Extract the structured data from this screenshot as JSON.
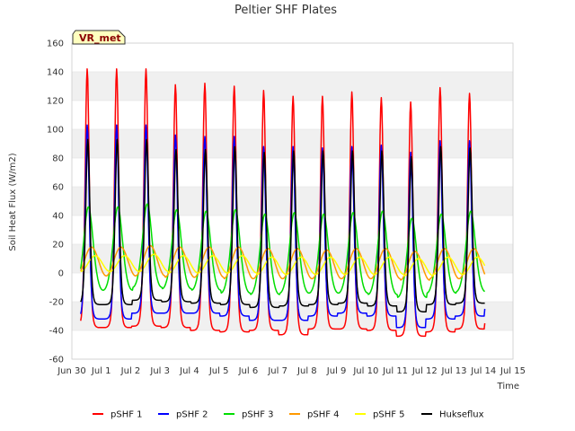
{
  "chart_data": {
    "type": "line",
    "title": "Peltier SHF Plates",
    "xlabel": "Time",
    "ylabel": "Soil Heat Flux (W/m2)",
    "badge": "VR_met",
    "ylim": [
      -60,
      160
    ],
    "yticks": [
      -60,
      -40,
      -20,
      0,
      20,
      40,
      60,
      80,
      100,
      120,
      140,
      160
    ],
    "xlim": [
      "2024-06-30",
      "2024-07-15"
    ],
    "xticks": [
      "Jun 30",
      "Jul 1",
      "Jul 2",
      "Jul 3",
      "Jul 4",
      "Jul 5",
      "Jul 6",
      "Jul 7",
      "Jul 8",
      "Jul 9",
      "Jul 10",
      "Jul 11",
      "Jul 12",
      "Jul 13",
      "Jul 14",
      "Jul 15"
    ],
    "grid": true,
    "legend_position": "bottom",
    "days": [
      "Jul 1",
      "Jul 2",
      "Jul 3",
      "Jul 4",
      "Jul 5",
      "Jul 6",
      "Jul 7",
      "Jul 8",
      "Jul 9",
      "Jul 10",
      "Jul 11",
      "Jul 12",
      "Jul 13",
      "Jul 14"
    ],
    "series": [
      {
        "name": "pSHF 1",
        "color": "#ff0000",
        "peak_time_of_day": "12:30",
        "daily_max": [
          142,
          142,
          131,
          132,
          130,
          127,
          123,
          123,
          126,
          122,
          119,
          129,
          125,
          132
        ],
        "daily_min": [
          -38,
          -37,
          -38,
          -40,
          -41,
          -40,
          -43,
          -39,
          -39,
          -40,
          -44,
          -41,
          -39,
          -35
        ]
      },
      {
        "name": "pSHF 2",
        "color": "#0000ff",
        "peak_time_of_day": "12:30",
        "daily_max": [
          103,
          103,
          96,
          95,
          95,
          88,
          88,
          87,
          88,
          89,
          84,
          92,
          92,
          95
        ],
        "daily_min": [
          -32,
          -28,
          -28,
          -28,
          -30,
          -33,
          -33,
          -30,
          -28,
          -30,
          -38,
          -32,
          -30,
          -25
        ]
      },
      {
        "name": "pSHF 3",
        "color": "#00dd00",
        "peak_time_of_day": "13:30",
        "daily_max": [
          46,
          48,
          44,
          43,
          44,
          41,
          42,
          41,
          42,
          43,
          38,
          41,
          43,
          44
        ],
        "daily_min": [
          -12,
          -10,
          -11,
          -12,
          -14,
          -15,
          -14,
          -14,
          -14,
          -15,
          -17,
          -14,
          -13,
          -10
        ]
      },
      {
        "name": "pSHF 4",
        "color": "#ff9900",
        "peak_time_of_day": "16:00",
        "daily_max": [
          18,
          19,
          18,
          18,
          18,
          17,
          17,
          16,
          17,
          17,
          15,
          17,
          17,
          18
        ],
        "daily_min": [
          -2,
          -2,
          -3,
          -3,
          -4,
          -4,
          -4,
          -4,
          -4,
          -4,
          -5,
          -4,
          -4,
          -3
        ]
      },
      {
        "name": "pSHF 5",
        "color": "#ffff00",
        "peak_time_of_day": "19:00",
        "daily_max": [
          12,
          13,
          12,
          12,
          12,
          11,
          11,
          11,
          11,
          11,
          10,
          11,
          11,
          12
        ],
        "daily_min": [
          1,
          1,
          0,
          0,
          0,
          -1,
          -1,
          -1,
          -1,
          -1,
          -2,
          -1,
          -1,
          0
        ]
      },
      {
        "name": "Hukseflux",
        "color": "#000000",
        "peak_time_of_day": "13:00",
        "daily_max": [
          93,
          93,
          86,
          86,
          88,
          84,
          85,
          85,
          85,
          85,
          81,
          88,
          87,
          91
        ],
        "daily_min": [
          -22,
          -19,
          -20,
          -21,
          -22,
          -24,
          -23,
          -22,
          -21,
          -23,
          -27,
          -22,
          -21,
          -18
        ]
      }
    ]
  }
}
